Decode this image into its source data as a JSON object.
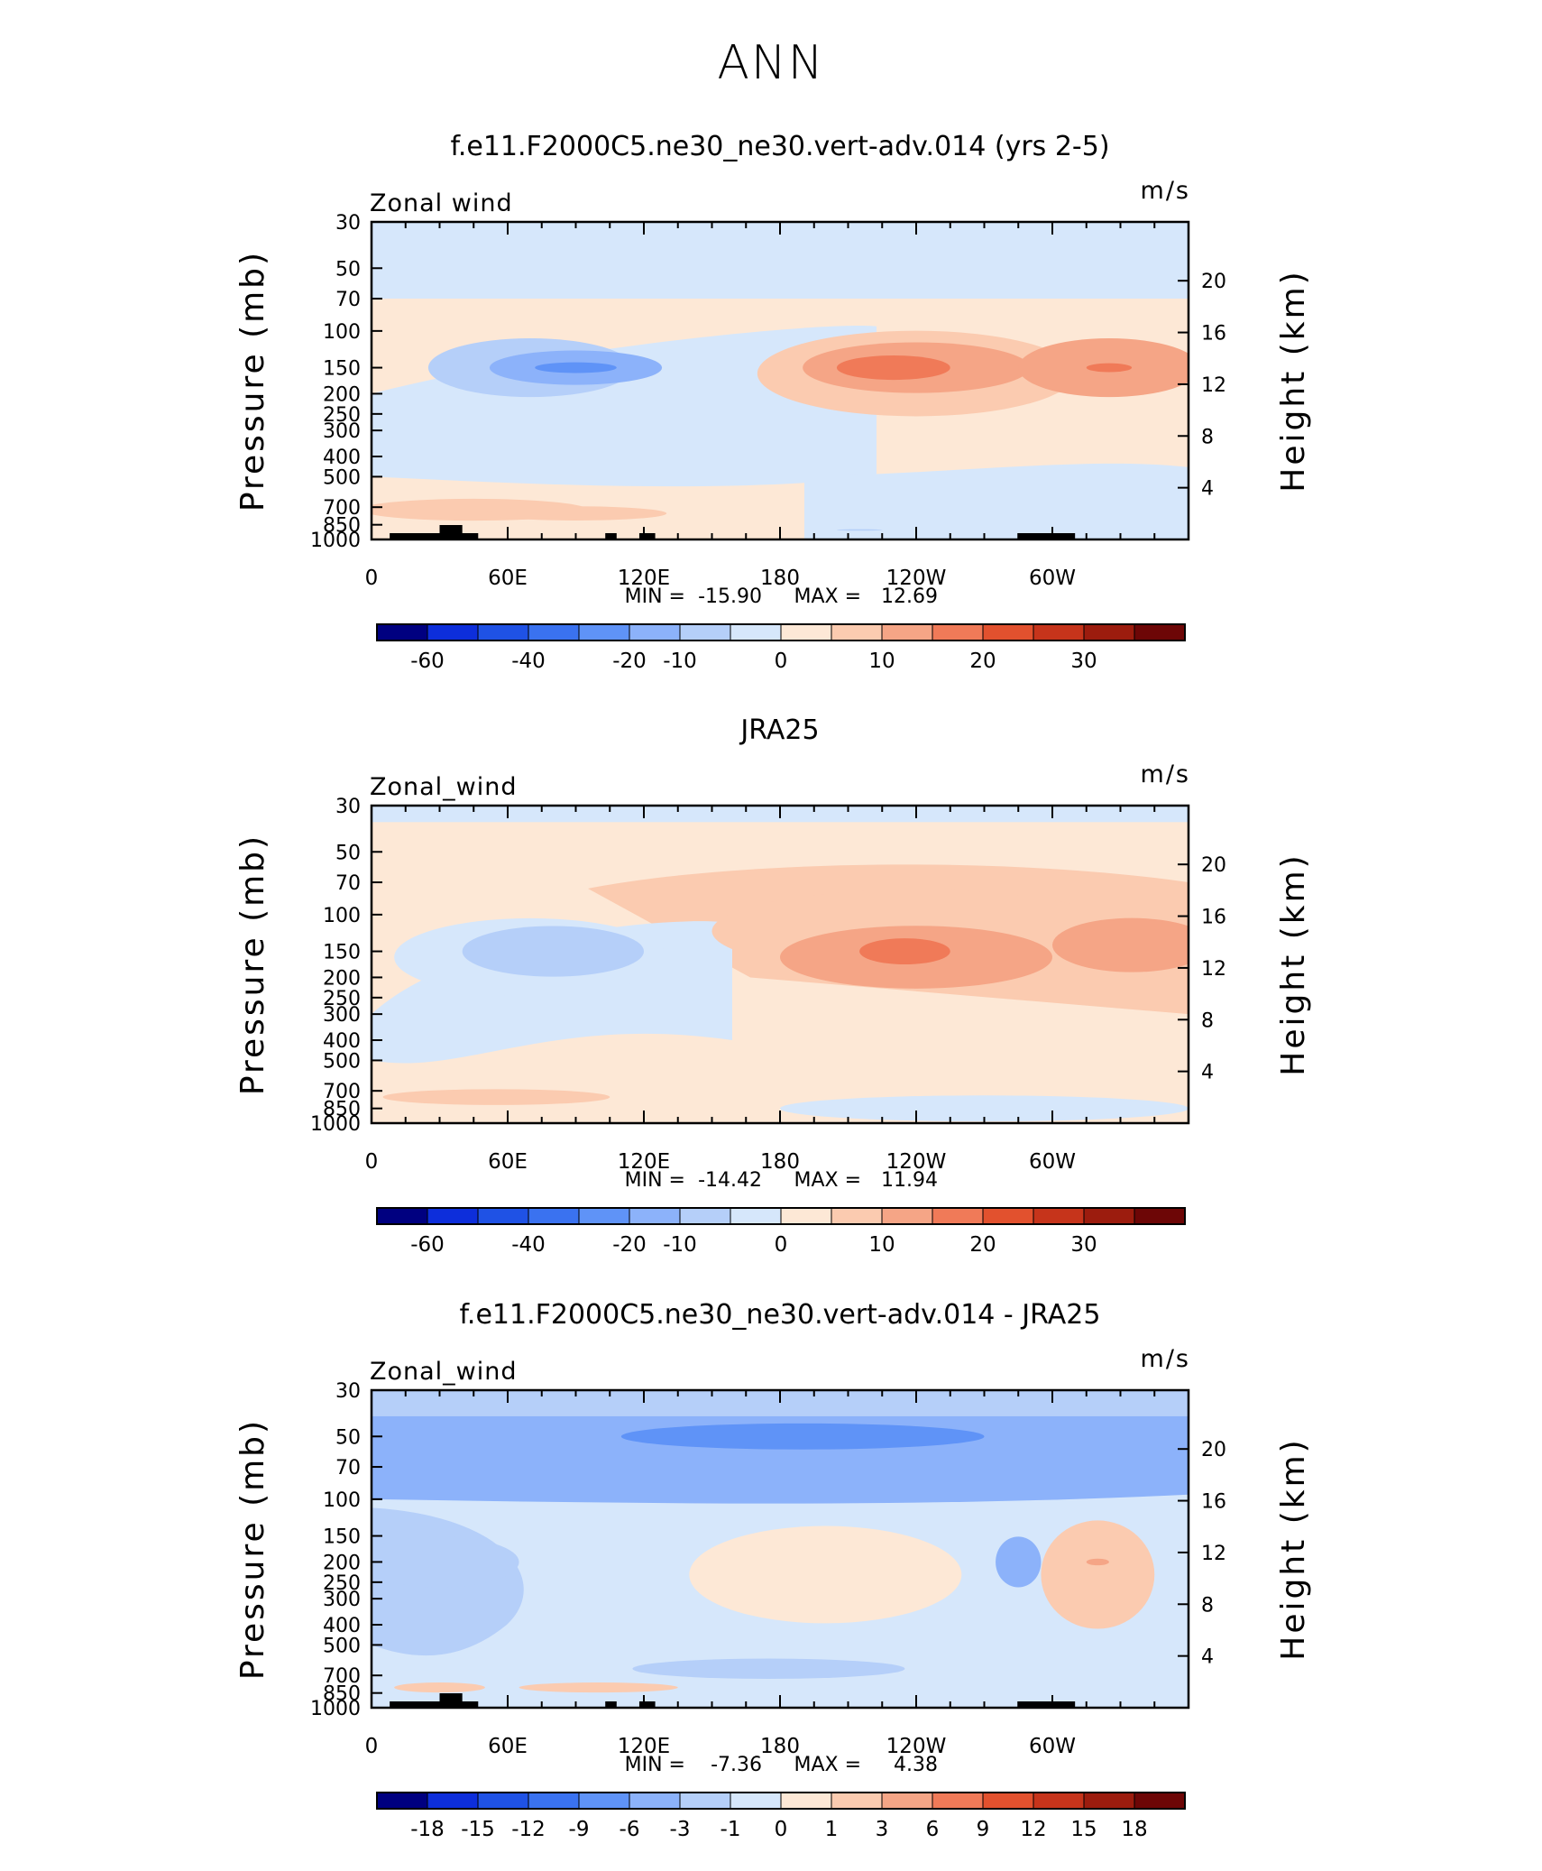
{
  "page": {
    "title": "ANN"
  },
  "colors": {
    "default_palette": [
      "#000080",
      "#0d2edb",
      "#1f52e5",
      "#3a72f0",
      "#5f93f7",
      "#8cb2fa",
      "#b5cff9",
      "#d6e7fb",
      "#fde8d6",
      "#fbcbb0",
      "#f5a586",
      "#f07a58",
      "#e2512e",
      "#c6341b",
      "#9c1c0e",
      "#6d0606"
    ],
    "diff_palette": [
      "#000080",
      "#0d2edb",
      "#1f52e5",
      "#3a72f0",
      "#5f93f7",
      "#8cb2fa",
      "#b5cff9",
      "#d6e7fb",
      "#fde8d6",
      "#fbcbb0",
      "#f5a586",
      "#f07a58",
      "#e2512e",
      "#c6341b",
      "#9c1c0e",
      "#6d0606"
    ]
  },
  "chart_data": [
    {
      "type": "heatmap",
      "title": "f.e11.F2000C5.ne30_ne30.vert-adv.014 (yrs 2-5)",
      "left_label": "Zonal wind",
      "units": "m/s",
      "ylabel": "Pressure (mb)",
      "ylabel_right": "Height (km)",
      "x_ticks": [
        "0",
        "60E",
        "120E",
        "180",
        "120W",
        "60W"
      ],
      "y_ticks": [
        "30",
        "50",
        "70",
        "100",
        "150",
        "200",
        "250",
        "300",
        "400",
        "500",
        "700",
        "850",
        "1000"
      ],
      "y_ticks_right": [
        "20",
        "16",
        "12",
        "8",
        "4"
      ],
      "stats": {
        "min_label": "MIN =",
        "min": "-15.90",
        "max_label": "MAX =",
        "max": "12.69"
      },
      "colorbar_labels": [
        "-60",
        "-40",
        "-20",
        "-10",
        "0",
        "10",
        "20",
        "30"
      ],
      "colorbar_label_boundaries": [
        1,
        3,
        5,
        6,
        8,
        10,
        12,
        14
      ],
      "features": [
        {
          "lon": 180,
          "p": 35,
          "rx": 0,
          "ry": 0,
          "level": 7,
          "band": "top",
          "layer": "band"
        },
        {
          "lon": 70,
          "p": 150,
          "rx": 45,
          "ry": 70,
          "level": 6
        },
        {
          "lon": 90,
          "p": 150,
          "rx": 38,
          "ry": 40,
          "level": 5
        },
        {
          "lon": 90,
          "p": 150,
          "rx": 18,
          "ry": 12,
          "level": 4
        },
        {
          "lon": 240,
          "p": 160,
          "rx": 70,
          "ry": 110,
          "level": 9
        },
        {
          "lon": 240,
          "p": 150,
          "rx": 50,
          "ry": 60,
          "level": 10
        },
        {
          "lon": 230,
          "p": 150,
          "rx": 25,
          "ry": 28,
          "level": 11
        },
        {
          "lon": 325,
          "p": 150,
          "rx": 40,
          "ry": 70,
          "level": 10
        },
        {
          "lon": 325,
          "p": 150,
          "rx": 10,
          "ry": 10,
          "level": 11
        },
        {
          "lon": 45,
          "p": 720,
          "rx": 50,
          "ry": 120,
          "level": 9
        },
        {
          "lon": 90,
          "p": 750,
          "rx": 40,
          "ry": 80,
          "level": 9
        },
        {
          "lon": 215,
          "p": 900,
          "rx": 10,
          "ry": 10,
          "level": 6
        }
      ],
      "background_level": 7,
      "mid_level": 8
    },
    {
      "type": "heatmap",
      "title": "JRA25",
      "left_label": "Zonal_wind",
      "units": "m/s",
      "ylabel": "Pressure (mb)",
      "ylabel_right": "Height (km)",
      "x_ticks": [
        "0",
        "60E",
        "120E",
        "180",
        "120W",
        "60W"
      ],
      "y_ticks": [
        "30",
        "50",
        "70",
        "100",
        "150",
        "200",
        "250",
        "300",
        "400",
        "500",
        "700",
        "850",
        "1000"
      ],
      "y_ticks_right": [
        "20",
        "16",
        "12",
        "8",
        "4"
      ],
      "stats": {
        "min_label": "MIN =",
        "min": "-14.42",
        "max_label": "MAX =",
        "max": "11.94"
      },
      "colorbar_labels": [
        "-60",
        "-40",
        "-20",
        "-10",
        "0",
        "10",
        "20",
        "30"
      ],
      "colorbar_label_boundaries": [
        1,
        3,
        5,
        6,
        8,
        10,
        12,
        14
      ],
      "features": [
        {
          "lon": 70,
          "p": 160,
          "rx": 60,
          "ry": 100,
          "level": 7
        },
        {
          "lon": 80,
          "p": 150,
          "rx": 40,
          "ry": 60,
          "level": 6
        },
        {
          "lon": 240,
          "p": 120,
          "rx": 90,
          "ry": 80,
          "level": 9
        },
        {
          "lon": 240,
          "p": 160,
          "rx": 60,
          "ry": 80,
          "level": 10
        },
        {
          "lon": 235,
          "p": 150,
          "rx": 20,
          "ry": 30,
          "level": 11
        },
        {
          "lon": 335,
          "p": 140,
          "rx": 35,
          "ry": 60,
          "level": 10
        },
        {
          "lon": 55,
          "p": 750,
          "rx": 50,
          "ry": 90,
          "level": 9
        },
        {
          "lon": 270,
          "p": 850,
          "rx": 90,
          "ry": 200,
          "level": 7
        }
      ],
      "background_level": 8,
      "mid_level": 8
    },
    {
      "type": "heatmap",
      "title": "f.e11.F2000C5.ne30_ne30.vert-adv.014 - JRA25",
      "left_label": "Zonal_wind",
      "units": "m/s",
      "ylabel": "Pressure (mb)",
      "ylabel_right": "Height (km)",
      "x_ticks": [
        "0",
        "60E",
        "120E",
        "180",
        "120W",
        "60W"
      ],
      "y_ticks": [
        "30",
        "50",
        "70",
        "100",
        "150",
        "200",
        "250",
        "300",
        "400",
        "500",
        "700",
        "850",
        "1000"
      ],
      "y_ticks_right": [
        "20",
        "16",
        "12",
        "8",
        "4"
      ],
      "stats": {
        "min_label": "MIN =",
        "min": "-7.36",
        "max_label": "MAX =",
        "max": "4.38"
      },
      "colorbar_labels": [
        "-18",
        "-15",
        "-12",
        "-9",
        "-6",
        "-3",
        "-1",
        "0",
        "1",
        "3",
        "6",
        "9",
        "12",
        "15",
        "18"
      ],
      "colorbar_label_boundaries": [
        1,
        2,
        3,
        4,
        5,
        6,
        7,
        8,
        9,
        10,
        11,
        12,
        13,
        14,
        15
      ],
      "features": [
        {
          "lon": 180,
          "p": 50,
          "rx": 0,
          "ry": 0,
          "level": 5,
          "band": "upper",
          "layer": "band"
        },
        {
          "lon": 190,
          "p": 50,
          "rx": 80,
          "ry": 10,
          "level": 4
        },
        {
          "lon": 200,
          "p": 230,
          "rx": 60,
          "ry": 180,
          "level": 8
        },
        {
          "lon": 320,
          "p": 230,
          "rx": 25,
          "ry": 200,
          "level": 9
        },
        {
          "lon": 320,
          "p": 200,
          "rx": 5,
          "ry": 10,
          "level": 10
        },
        {
          "lon": 285,
          "p": 200,
          "rx": 10,
          "ry": 80,
          "level": 5
        },
        {
          "lon": 30,
          "p": 200,
          "rx": 35,
          "ry": 80,
          "level": 6
        },
        {
          "lon": 175,
          "p": 650,
          "rx": 60,
          "ry": 100,
          "level": 6
        },
        {
          "lon": 100,
          "p": 800,
          "rx": 35,
          "ry": 60,
          "level": 9
        },
        {
          "lon": 30,
          "p": 800,
          "rx": 20,
          "ry": 60,
          "level": 9
        }
      ],
      "background_level": 7,
      "mid_level": 7
    }
  ]
}
